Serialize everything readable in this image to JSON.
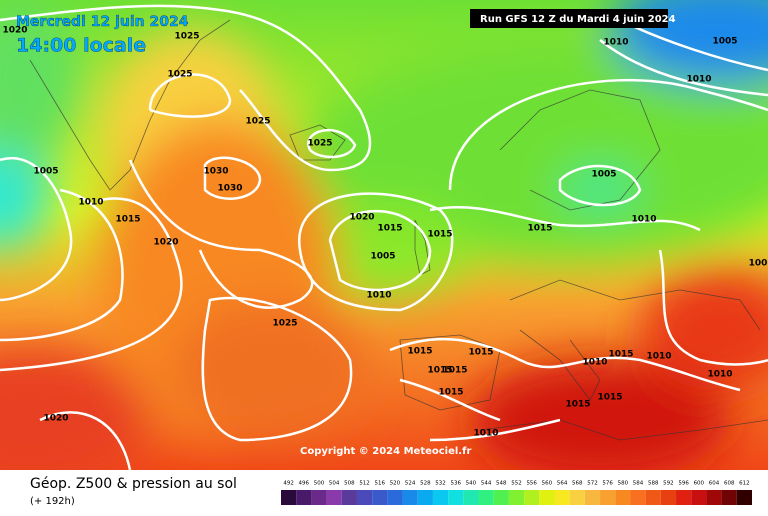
{
  "header": {
    "valid_date": "Mercredi 12 juin 2024",
    "local_time": "14:00 locale",
    "run": "Run GFS 12 Z du Mardi 4 juin 2024"
  },
  "isobar_labels": [
    "1020",
    "1025",
    "1025",
    "1025",
    "1025",
    "1005",
    "1010",
    "1015",
    "1020",
    "1030",
    "1030",
    "1020",
    "1015",
    "1015",
    "1005",
    "1010",
    "1025",
    "1015",
    "1005",
    "1010",
    "1010",
    "1005",
    "1010",
    "100",
    "1015",
    "1015",
    "1015",
    "1015",
    "1015",
    "1010",
    "1015",
    "1010",
    "1010",
    "1015",
    "1015",
    "1010",
    "1020"
  ],
  "copyright": "Copyright © 2024 Meteociel.fr",
  "footer": {
    "title": "Géop. Z500 & pression au sol",
    "lead_time": "(+ 192h)"
  },
  "legend": {
    "values": [
      492,
      496,
      500,
      504,
      508,
      512,
      516,
      520,
      524,
      528,
      532,
      536,
      540,
      544,
      548,
      552,
      556,
      560,
      564,
      568,
      572,
      576,
      580,
      584,
      588,
      592,
      596,
      600,
      604,
      608,
      612
    ]
  }
}
